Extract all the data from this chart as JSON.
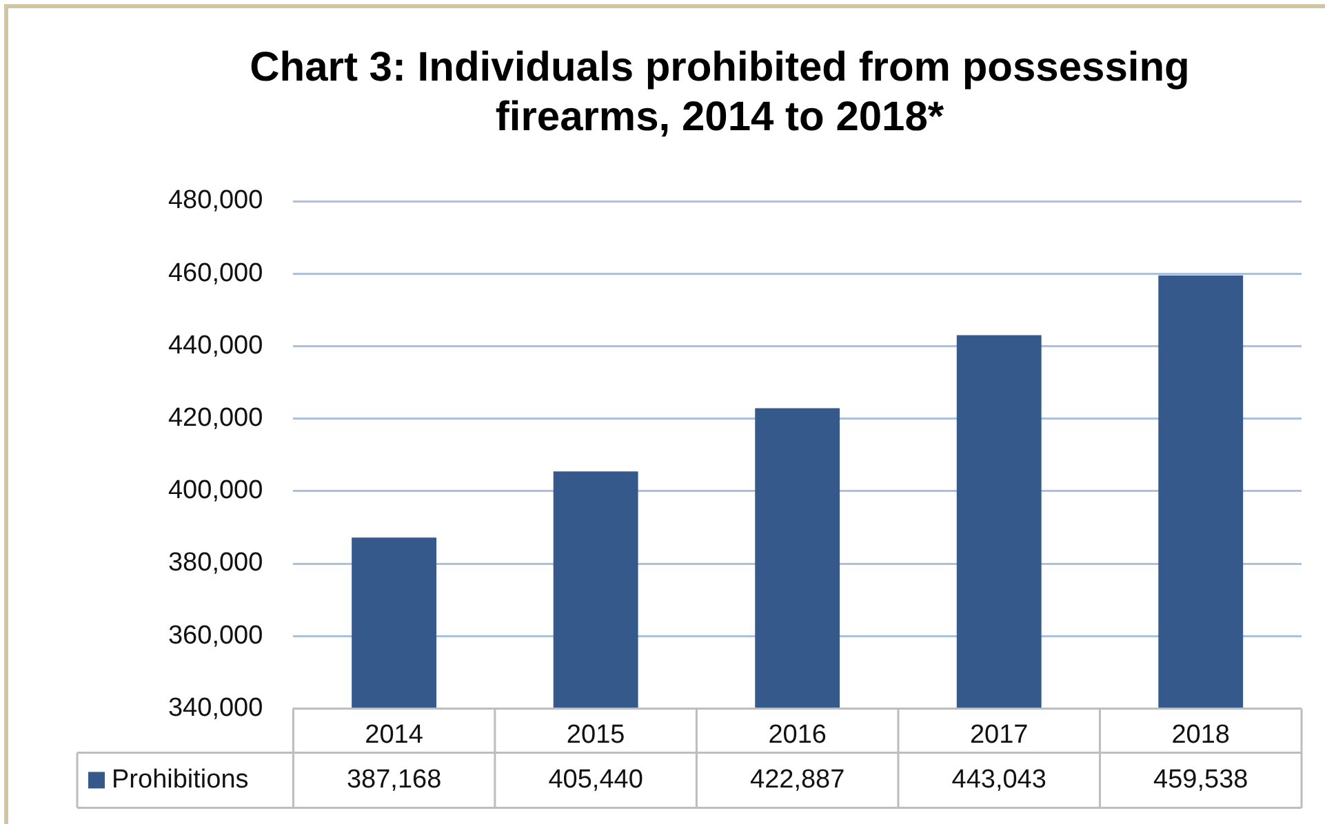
{
  "chart_data": {
    "type": "bar",
    "title": "Chart 3: Individuals prohibited from possessing firearms, 2014 to 2018*",
    "categories": [
      "2014",
      "2015",
      "2016",
      "2017",
      "2018"
    ],
    "series": [
      {
        "name": "Prohibitions",
        "color": "#34598a",
        "values": [
          387168,
          405440,
          422887,
          443043,
          459538
        ],
        "value_labels": [
          "387,168",
          "405,440",
          "422,887",
          "443,043",
          "459,538"
        ]
      }
    ],
    "ylim": [
      340000,
      480000
    ],
    "yticks": [
      {
        "value": 340000,
        "label": "340,000"
      },
      {
        "value": 360000,
        "label": "360,000"
      },
      {
        "value": 380000,
        "label": "380,000"
      },
      {
        "value": 400000,
        "label": "400,000"
      },
      {
        "value": 420000,
        "label": "420,000"
      },
      {
        "value": 440000,
        "label": "440,000"
      },
      {
        "value": 460000,
        "label": "460,000"
      },
      {
        "value": 480000,
        "label": "480,000"
      }
    ],
    "grid": "y"
  }
}
